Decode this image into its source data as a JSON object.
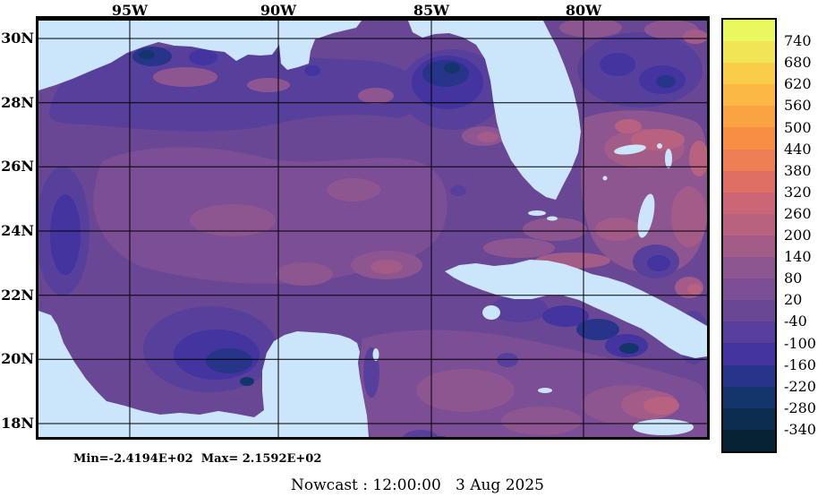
{
  "figure": {
    "description": "Ocean nowcast field map of the Gulf of Mexico, Florida, Cuba and northwest Caribbean with color scale"
  },
  "axes": {
    "x_labels": [
      "95W",
      "90W",
      "85W",
      "80W"
    ],
    "y_labels": [
      "30N",
      "28N",
      "26N",
      "24N",
      "22N",
      "20N",
      "18N"
    ]
  },
  "colorbar": {
    "labels": [
      "740",
      "680",
      "620",
      "560",
      "500",
      "440",
      "380",
      "320",
      "260",
      "200",
      "140",
      "80",
      "20",
      "-40",
      "-100",
      "-160",
      "-220",
      "-280",
      "-340"
    ],
    "colors": [
      "#e7f95f",
      "#f1e455",
      "#f9cd48",
      "#fbb845",
      "#faa342",
      "#f78e44",
      "#ee7f55",
      "#df6f65",
      "#cb6676",
      "#b86280",
      "#a35c88",
      "#8d5690",
      "#7b4e95",
      "#6a4795",
      "#56409b",
      "#4334a0",
      "#263589",
      "#14356c",
      "#0c2d4e",
      "#072233"
    ]
  },
  "map_colors": {
    "land": "#cbe5fb",
    "ocean_base": "#6a4795"
  },
  "footer": {
    "minmax": "Min=-2.4194E+02  Max= 2.1592E+02",
    "timestamp": "Nowcast : 12:00:00   3 Aug 2025"
  },
  "chart_data": {
    "type": "heatmap",
    "title": "Ocean nowcast field (filled contour map), Gulf of Mexico / NW Caribbean / western Atlantic",
    "x_tick_labels": [
      "95W",
      "90W",
      "85W",
      "80W"
    ],
    "y_tick_labels": [
      "30N",
      "28N",
      "26N",
      "24N",
      "22N",
      "20N",
      "18N"
    ],
    "x_axis_range_deg_west": [
      98,
      76
    ],
    "y_axis_range_deg_north": [
      17.6,
      30.6
    ],
    "grid": true,
    "legend_position": "right",
    "colorbar_tick_values": [
      740,
      680,
      620,
      560,
      500,
      440,
      380,
      320,
      260,
      200,
      140,
      80,
      20,
      -40,
      -100,
      -160,
      -220,
      -280,
      -340
    ],
    "colorbar_tick_step": 60,
    "colorbar_colors_top_to_bottom": [
      "#e7f95f",
      "#f1e455",
      "#f9cd48",
      "#fbb845",
      "#faa342",
      "#f78e44",
      "#ee7f55",
      "#df6f65",
      "#cb6676",
      "#b86280",
      "#a35c88",
      "#8d5690",
      "#7b4e95",
      "#6a4795",
      "#56409b",
      "#4334a0",
      "#263589",
      "#14356c",
      "#0c2d4e",
      "#072233"
    ],
    "field_min": -241.94,
    "field_max": 215.92,
    "min_label": "Min=-2.4194E+02",
    "max_label": "Max= 2.1592E+02",
    "timestamp_label": "Nowcast : 12:00:00   3 Aug 2025",
    "land_mask_color": "#cbe5fb"
  }
}
